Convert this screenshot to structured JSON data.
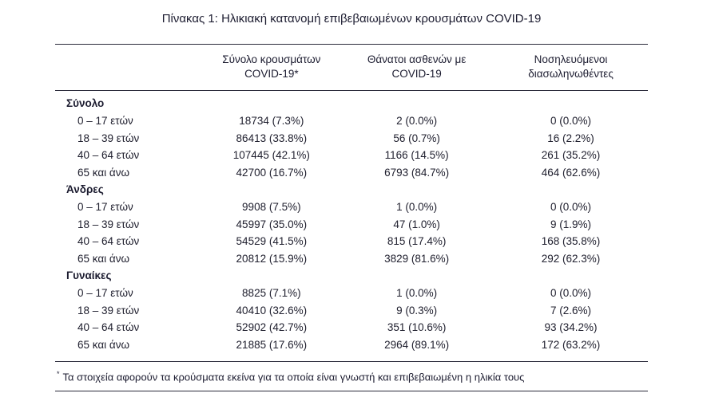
{
  "title": "Πίνακας 1: Ηλικιακή κατανομή επιβεβαιωμένων κρουσμάτων COVID-19",
  "footnote": {
    "marker": "*",
    "text": "Τα στοιχεία αφορούν τα κρούσματα εκείνα για τα οποία είναι γνωστή και επιβεβαιωμένη η ηλικία τους"
  },
  "colors": {
    "text": "#20202f",
    "rule": "#2a2a3a",
    "background": "#ffffff"
  },
  "chart_data": {
    "type": "table",
    "title": "Πίνακας 1: Ηλικιακή κατανομή επιβεβαιωμένων κρουσμάτων COVID-19",
    "column_headers": [
      {
        "line1": "Σύνολο κρουσμάτων",
        "line2": "COVID-19*"
      },
      {
        "line1": "Θάνατοι ασθενών με",
        "line2": "COVID-19"
      },
      {
        "line1": "Νοσηλευόμενοι",
        "line2": "διασωληνωθέντες"
      }
    ],
    "sections": [
      {
        "header": "Σύνολο",
        "rows": [
          {
            "label": "0 – 17 ετών",
            "cases": "18734 (7.3%)",
            "deaths": "2 (0.0%)",
            "icu": "0 (0.0%)"
          },
          {
            "label": "18 – 39 ετών",
            "cases": "86413 (33.8%)",
            "deaths": "56 (0.7%)",
            "icu": "16 (2.2%)"
          },
          {
            "label": "40 – 64 ετών",
            "cases": "107445 (42.1%)",
            "deaths": "1166 (14.5%)",
            "icu": "261 (35.2%)"
          },
          {
            "label": "65 και άνω",
            "cases": "42700 (16.7%)",
            "deaths": "6793 (84.7%)",
            "icu": "464 (62.6%)"
          }
        ]
      },
      {
        "header": "Άνδρες",
        "rows": [
          {
            "label": "0 – 17 ετών",
            "cases": "9908 (7.5%)",
            "deaths": "1 (0.0%)",
            "icu": "0 (0.0%)"
          },
          {
            "label": "18 – 39 ετών",
            "cases": "45997 (35.0%)",
            "deaths": "47 (1.0%)",
            "icu": "9 (1.9%)"
          },
          {
            "label": "40 – 64 ετών",
            "cases": "54529 (41.5%)",
            "deaths": "815 (17.4%)",
            "icu": "168 (35.8%)"
          },
          {
            "label": "65 και άνω",
            "cases": "20812 (15.9%)",
            "deaths": "3829 (81.6%)",
            "icu": "292 (62.3%)"
          }
        ]
      },
      {
        "header": "Γυναίκες",
        "rows": [
          {
            "label": "0 – 17 ετών",
            "cases": "8825 (7.1%)",
            "deaths": "1 (0.0%)",
            "icu": "0 (0.0%)"
          },
          {
            "label": "18 – 39 ετών",
            "cases": "40410 (32.6%)",
            "deaths": "9 (0.3%)",
            "icu": "7 (2.6%)"
          },
          {
            "label": "40 – 64 ετών",
            "cases": "52902 (42.7%)",
            "deaths": "351 (10.6%)",
            "icu": "93 (34.2%)"
          },
          {
            "label": "65 και άνω",
            "cases": "21885 (17.6%)",
            "deaths": "2964 (89.1%)",
            "icu": "172 (63.2%)"
          }
        ]
      }
    ],
    "footnote": "* Τα στοιχεία αφορούν τα κρούσματα εκείνα για τα οποία είναι γνωστή και επιβεβαιωμένη η ηλικία τους"
  }
}
